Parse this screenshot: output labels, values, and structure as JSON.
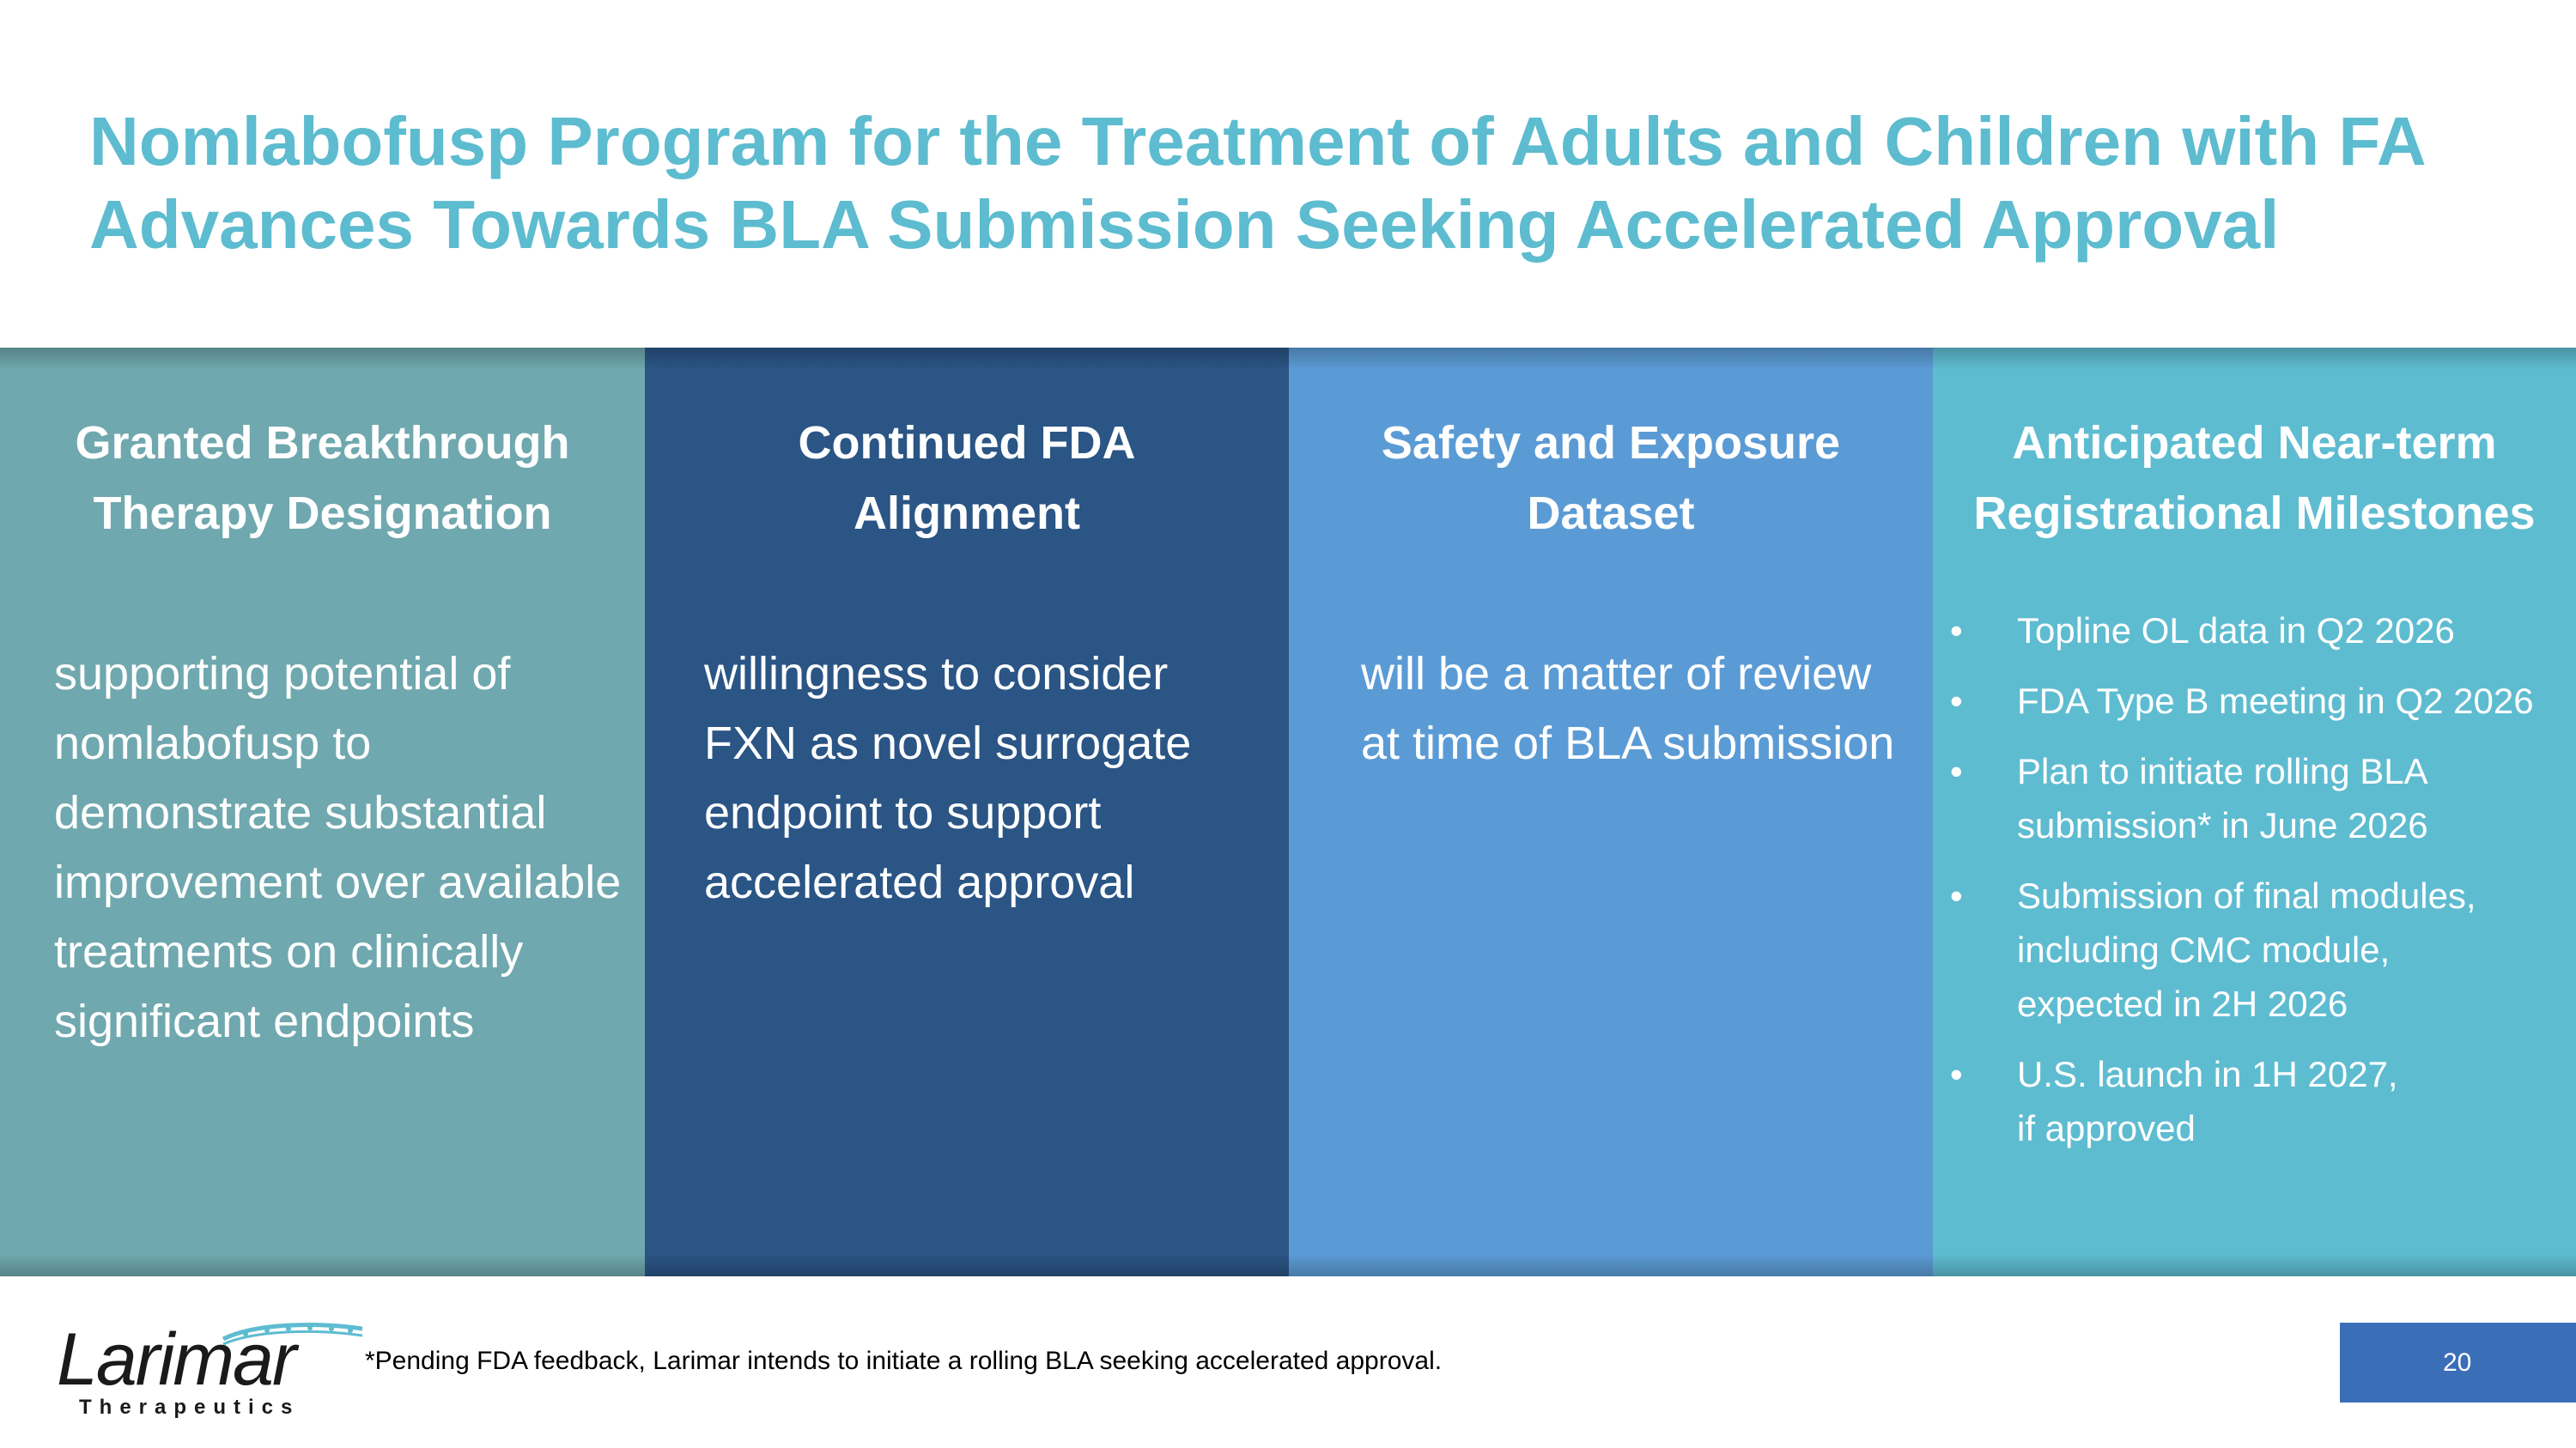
{
  "title": {
    "line1": "Nomlabofusp Program for the Treatment of Adults and Children with FA",
    "line2": "Advances Towards BLA Submission Seeking Accelerated Approval"
  },
  "columns": [
    {
      "heading_line1": "Granted Breakthrough",
      "heading_line2": "Therapy Designation",
      "body": "supporting potential of nomlabofusp to demonstrate substantial improvement over available treatments on clinically significant endpoints",
      "color": "#6fa8ae"
    },
    {
      "heading_line1": "Continued FDA",
      "heading_line2": "Alignment",
      "body": "willingness to consider FXN as novel surrogate endpoint to support accelerated approval",
      "color": "#2a5585"
    },
    {
      "heading_line1": "Safety and Exposure",
      "heading_line2": "Dataset",
      "body": "will be a matter of review at time of BLA submission",
      "color": "#5b9bd5"
    },
    {
      "heading_line1": "Anticipated Near-term",
      "heading_line2": "Registrational Milestones",
      "color": "#5ebcd1",
      "bullet": "•",
      "milestones": [
        {
          "lines": [
            "Topline OL data in Q2 2026"
          ]
        },
        {
          "lines": [
            "FDA Type B meeting in Q2 2026"
          ]
        },
        {
          "lines": [
            "Plan to initiate rolling BLA",
            "submission* in June 2026"
          ]
        },
        {
          "lines": [
            "Submission of final modules,",
            "including CMC module,",
            "expected in 2H 2026"
          ]
        },
        {
          "lines": [
            "U.S. launch in 1H 2027,",
            "if approved"
          ]
        }
      ]
    }
  ],
  "logo": {
    "name": "Larimar",
    "subtitle": "Therapeutics",
    "accent_color": "#5ebcd1"
  },
  "footnote": "*Pending FDA feedback, Larimar intends to initiate a rolling BLA seeking accelerated approval.",
  "page_number": "20",
  "colors": {
    "title": "#5dbccf",
    "page_box": "#3a6fb7"
  }
}
